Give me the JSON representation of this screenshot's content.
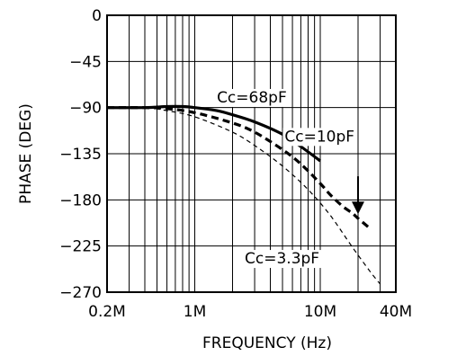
{
  "chart_data": {
    "type": "line",
    "title": "",
    "xlabel": "FREQUENCY (Hz)",
    "ylabel": "PHASE (DEG)",
    "x_scale": "log",
    "x_range_hz": [
      200000,
      40000000
    ],
    "y_range_deg": [
      -270,
      0
    ],
    "grid": true,
    "x_tick_values": [
      200000,
      1000000,
      10000000,
      40000000
    ],
    "x_tick_labels": [
      "0.2M",
      "1M",
      "10M",
      "40M"
    ],
    "y_tick_values": [
      0,
      -45,
      -90,
      -135,
      -180,
      -225,
      -270
    ],
    "y_tick_labels": [
      "0",
      "−45",
      "−90",
      "−135",
      "−180",
      "−225",
      "−270"
    ],
    "series": [
      {
        "name": "Cc=68pF",
        "style": "solid-bold",
        "x": [
          200000,
          400000,
          600000,
          800000,
          1000000,
          1500000,
          2000000,
          3000000,
          5000000,
          7000000,
          10000000
        ],
        "y": [
          -90,
          -90,
          -89,
          -89,
          -90,
          -93,
          -97,
          -104,
          -116,
          -128,
          -142
        ]
      },
      {
        "name": "Cc=10pF",
        "style": "dashed-bold",
        "x": [
          200000,
          400000,
          600000,
          1000000,
          2000000,
          3000000,
          5000000,
          7000000,
          10000000,
          12000000,
          15000000,
          18000000,
          20000000,
          25000000
        ],
        "y": [
          -90,
          -90,
          -91,
          -95,
          -105,
          -114,
          -131,
          -145,
          -164,
          -175,
          -186,
          -193,
          -198,
          -208
        ]
      },
      {
        "name": "Cc=3.3pF",
        "style": "dashed-thin",
        "x": [
          200000,
          400000,
          600000,
          1000000,
          2000000,
          3000000,
          5000000,
          8000000,
          12000000,
          18000000,
          25000000,
          30000000
        ],
        "y": [
          -90,
          -90,
          -93,
          -99,
          -114,
          -127,
          -147,
          -170,
          -195,
          -226,
          -250,
          -262
        ]
      }
    ],
    "annotations": [
      {
        "text": "Cc=68pF",
        "x_hz": 1500000,
        "y_deg": -85
      },
      {
        "text": "Cc=10pF",
        "x_hz": 5200000,
        "y_deg": -123
      },
      {
        "text": "Cc=3.3pF",
        "x_hz": 2500000,
        "y_deg": -242
      }
    ],
    "arrow": {
      "x_hz": 20000000,
      "from_y_deg": -157,
      "to_y_deg": -194
    }
  }
}
